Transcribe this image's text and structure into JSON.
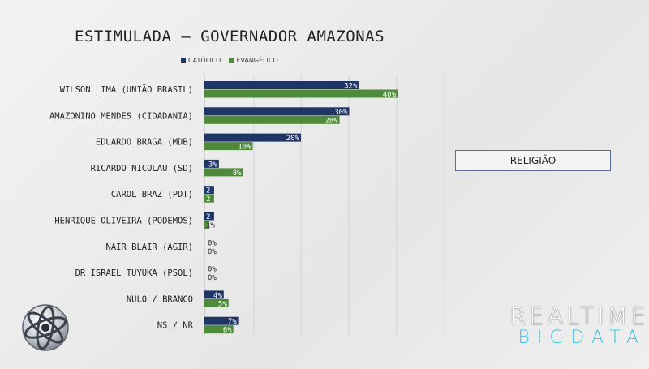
{
  "chart_data": {
    "type": "bar",
    "orientation": "horizontal",
    "title": "ESTIMULADA – GOVERNADOR AMAZONAS",
    "categories": [
      "WILSON LIMA (UNIÃO BRASIL)",
      "AMAZONINO MENDES (CIDADANIA)",
      "EDUARDO BRAGA (MDB)",
      "RICARDO NICOLAU (SD)",
      "CAROL BRAZ (PDT)",
      "HENRIQUE OLIVEIRA (PODEMOS)",
      "NAIR BLAIR (AGIR)",
      "DR ISRAEL TUYUKA (PSOL)",
      "NULO / BRANCO",
      "NS / NR"
    ],
    "series": [
      {
        "name": "CATÓLICO",
        "color": "#1f3566",
        "values": [
          32,
          30,
          20,
          3,
          2,
          2,
          0,
          0,
          4,
          7
        ],
        "labels": [
          "32%",
          "30%",
          "20%",
          "3%",
          "2",
          "2",
          "0%",
          "0%",
          "4%",
          "7%"
        ]
      },
      {
        "name": "EVANGÉLICO",
        "color": "#4f8a3a",
        "values": [
          40,
          28,
          10,
          8,
          2,
          1,
          0,
          0,
          5,
          6
        ],
        "labels": [
          "40%",
          "28%",
          "10%",
          "8%",
          "2",
          "1%",
          "0%",
          "0%",
          "5%",
          "6%"
        ]
      }
    ],
    "xlim": [
      0,
      40
    ],
    "grid": true,
    "legend": "top"
  },
  "side_box": {
    "label": "RELIGIÃO"
  },
  "brand": {
    "top": "REALTIME",
    "bottom": "BIGDATA"
  }
}
